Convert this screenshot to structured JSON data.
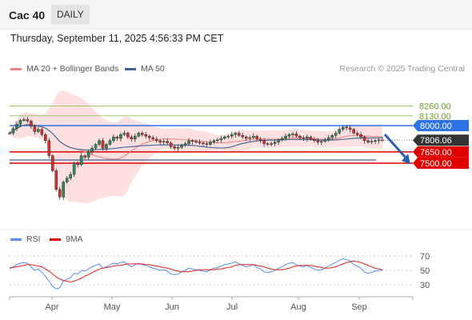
{
  "header": {
    "title": "Cac 40",
    "timeframe": "DAILY"
  },
  "datetime": "Thursday, September 11, 2025 4:56:33 PM CET",
  "legend": {
    "ma20": "MA 20 + Bollinger Bands",
    "ma50": "MA 50",
    "credit": "Research © 2025 Trading Central"
  },
  "rsi_legend": {
    "rsi": "RSI",
    "ma9": "9MA"
  },
  "colors": {
    "resistance": "#9bc96b",
    "pivot": "#2d73e6",
    "support": "#e00000",
    "bollinger": "#ffd8d8",
    "ma20": "#f07c7c",
    "ma50": "#4a6a9a",
    "up": "#2e8b57",
    "down": "#d03030",
    "rsi": "#5b8def",
    "rsi_ma": "#e02020",
    "last_price_bg": "#333333"
  },
  "chart_data": [
    {
      "type": "candlestick",
      "title": "Cac 40",
      "timeframe": "DAILY",
      "x_labels": [
        "Apr",
        "May",
        "Jun",
        "Jul",
        "Aug",
        "Sep"
      ],
      "ylim": [
        7000,
        8500
      ],
      "levels": [
        {
          "label": "8260.00",
          "value": 8260,
          "kind": "resistance"
        },
        {
          "label": "8130.00",
          "value": 8130,
          "kind": "resistance"
        },
        {
          "label": "8000.00",
          "value": 8000,
          "kind": "pivot"
        },
        {
          "label": "7650.00",
          "value": 7650,
          "kind": "support"
        },
        {
          "label": "7500.00",
          "value": 7500,
          "kind": "support"
        }
      ],
      "last_price": {
        "label": "7806.06",
        "value": 7806.06
      },
      "forecast_arrow": {
        "direction": "down",
        "from": 7830,
        "to": 7520
      },
      "close_series": [
        7900,
        7960,
        8020,
        8070,
        8080,
        8060,
        7990,
        7920,
        7950,
        7880,
        7800,
        7600,
        7400,
        7150,
        7050,
        7250,
        7300,
        7350,
        7500,
        7480,
        7600,
        7580,
        7650,
        7700,
        7750,
        7800,
        7700,
        7750,
        7800,
        7850,
        7830,
        7880,
        7900,
        7850,
        7820,
        7860,
        7900,
        7880,
        7860,
        7840,
        7820,
        7800,
        7780,
        7790,
        7770,
        7720,
        7700,
        7710,
        7740,
        7760,
        7800,
        7790,
        7780,
        7770,
        7760,
        7750,
        7780,
        7800,
        7810,
        7830,
        7850,
        7860,
        7880,
        7900,
        7870,
        7850,
        7830,
        7840,
        7860,
        7820,
        7800,
        7760,
        7750,
        7760,
        7780,
        7810,
        7830,
        7860,
        7880,
        7890,
        7860,
        7840,
        7830,
        7850,
        7820,
        7800,
        7780,
        7790,
        7810,
        7840,
        7870,
        7900,
        7950,
        7980,
        7970,
        7950,
        7900,
        7880,
        7850,
        7800,
        7780,
        7790,
        7800,
        7810,
        7806
      ]
    },
    {
      "type": "line",
      "title": "RSI",
      "yticks": [
        70,
        50,
        30
      ],
      "series": [
        {
          "name": "RSI",
          "values": [
            52,
            55,
            58,
            60,
            61,
            60,
            55,
            50,
            52,
            47,
            42,
            35,
            28,
            24,
            26,
            35,
            38,
            40,
            46,
            45,
            50,
            49,
            52,
            55,
            57,
            59,
            53,
            55,
            58,
            60,
            59,
            61,
            62,
            58,
            55,
            58,
            60,
            58,
            57,
            55,
            53,
            52,
            50,
            51,
            49,
            45,
            44,
            45,
            48,
            50,
            53,
            52,
            51,
            50,
            49,
            48,
            51,
            53,
            54,
            56,
            58,
            59,
            60,
            62,
            59,
            57,
            55,
            56,
            58,
            54,
            52,
            48,
            47,
            48,
            50,
            53,
            55,
            58,
            60,
            61,
            58,
            56,
            55,
            57,
            54,
            52,
            50,
            51,
            53,
            56,
            59,
            61,
            64,
            66,
            65,
            63,
            58,
            56,
            53,
            48,
            46,
            47,
            49,
            50,
            50
          ]
        },
        {
          "name": "9MA",
          "values": [
            54,
            54,
            55,
            56,
            57,
            58,
            58,
            57,
            56,
            55,
            52,
            49,
            45,
            41,
            38,
            36,
            35,
            34,
            35,
            37,
            39,
            42,
            44,
            47,
            49,
            52,
            53,
            54,
            55,
            56,
            57,
            57,
            58,
            59,
            59,
            59,
            59,
            59,
            58,
            58,
            57,
            56,
            55,
            54,
            53,
            52,
            50,
            49,
            48,
            48,
            48,
            49,
            50,
            51,
            51,
            51,
            51,
            51,
            52,
            52,
            53,
            54,
            55,
            57,
            58,
            58,
            58,
            58,
            58,
            57,
            56,
            55,
            53,
            52,
            51,
            51,
            51,
            52,
            53,
            55,
            56,
            57,
            57,
            57,
            57,
            56,
            55,
            54,
            53,
            53,
            54,
            55,
            57,
            59,
            61,
            62,
            63,
            62,
            61,
            59,
            57,
            55,
            53,
            52,
            51
          ]
        }
      ]
    }
  ]
}
